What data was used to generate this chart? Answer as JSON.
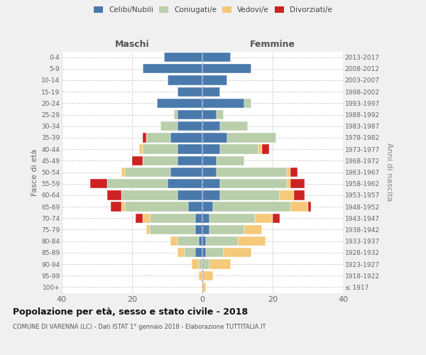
{
  "age_groups": [
    "100+",
    "95-99",
    "90-94",
    "85-89",
    "80-84",
    "75-79",
    "70-74",
    "65-69",
    "60-64",
    "55-59",
    "50-54",
    "45-49",
    "40-44",
    "35-39",
    "30-34",
    "25-29",
    "20-24",
    "15-19",
    "10-14",
    "5-9",
    "0-4"
  ],
  "birth_years": [
    "≤ 1917",
    "1918-1922",
    "1923-1927",
    "1928-1932",
    "1933-1937",
    "1938-1942",
    "1943-1947",
    "1948-1952",
    "1953-1957",
    "1958-1962",
    "1963-1967",
    "1968-1972",
    "1973-1977",
    "1978-1982",
    "1983-1987",
    "1988-1992",
    "1993-1997",
    "1998-2002",
    "2003-2007",
    "2008-2012",
    "2013-2017"
  ],
  "males_celibi": [
    0,
    0,
    0,
    2,
    1,
    2,
    2,
    4,
    7,
    10,
    9,
    7,
    7,
    9,
    7,
    7,
    13,
    7,
    10,
    17,
    11
  ],
  "males_coniugati": [
    0,
    0,
    1,
    3,
    6,
    13,
    13,
    18,
    16,
    17,
    13,
    10,
    10,
    7,
    5,
    1,
    0,
    0,
    0,
    0,
    0
  ],
  "males_vedovi": [
    0,
    1,
    2,
    2,
    2,
    1,
    2,
    1,
    0,
    0,
    1,
    0,
    1,
    0,
    0,
    0,
    0,
    0,
    0,
    0,
    0
  ],
  "males_divorziati": [
    0,
    0,
    0,
    0,
    0,
    0,
    2,
    3,
    4,
    5,
    0,
    3,
    0,
    1,
    0,
    0,
    0,
    0,
    0,
    0,
    0
  ],
  "females_nubili": [
    0,
    0,
    0,
    1,
    1,
    2,
    2,
    3,
    5,
    5,
    4,
    4,
    5,
    7,
    5,
    4,
    12,
    5,
    7,
    14,
    8
  ],
  "females_coniugate": [
    0,
    0,
    2,
    5,
    9,
    10,
    13,
    22,
    17,
    19,
    20,
    8,
    11,
    14,
    8,
    2,
    2,
    0,
    0,
    0,
    0
  ],
  "females_vedove": [
    1,
    3,
    6,
    8,
    8,
    5,
    5,
    5,
    4,
    1,
    1,
    0,
    1,
    0,
    0,
    0,
    0,
    0,
    0,
    0,
    0
  ],
  "females_divorziate": [
    0,
    0,
    0,
    0,
    0,
    0,
    2,
    1,
    3,
    4,
    2,
    0,
    2,
    0,
    0,
    0,
    0,
    0,
    0,
    0,
    0
  ],
  "color_celibi": "#4a7aac",
  "color_coniugati": "#b9ceaa",
  "color_vedovi": "#f5c97a",
  "color_divorziati": "#cc2222",
  "xlim": 40,
  "title": "Popolazione per età, sesso e stato civile - 2018",
  "subtitle": "COMUNE DI VARENNA (LC) - Dati ISTAT 1° gennaio 2018 - Elaborazione TUTTITALIA.IT",
  "ylabel_left": "Fasce di età",
  "ylabel_right": "Anni di nascita",
  "header_left": "Maschi",
  "header_right": "Femmine",
  "bg_color": "#f0f0f0",
  "plot_bg": "#ffffff",
  "grid_color": "#cccccc",
  "legend_labels": [
    "Celibi/Nubili",
    "Coniugati/e",
    "Vedovi/e",
    "Divorziati/e"
  ]
}
